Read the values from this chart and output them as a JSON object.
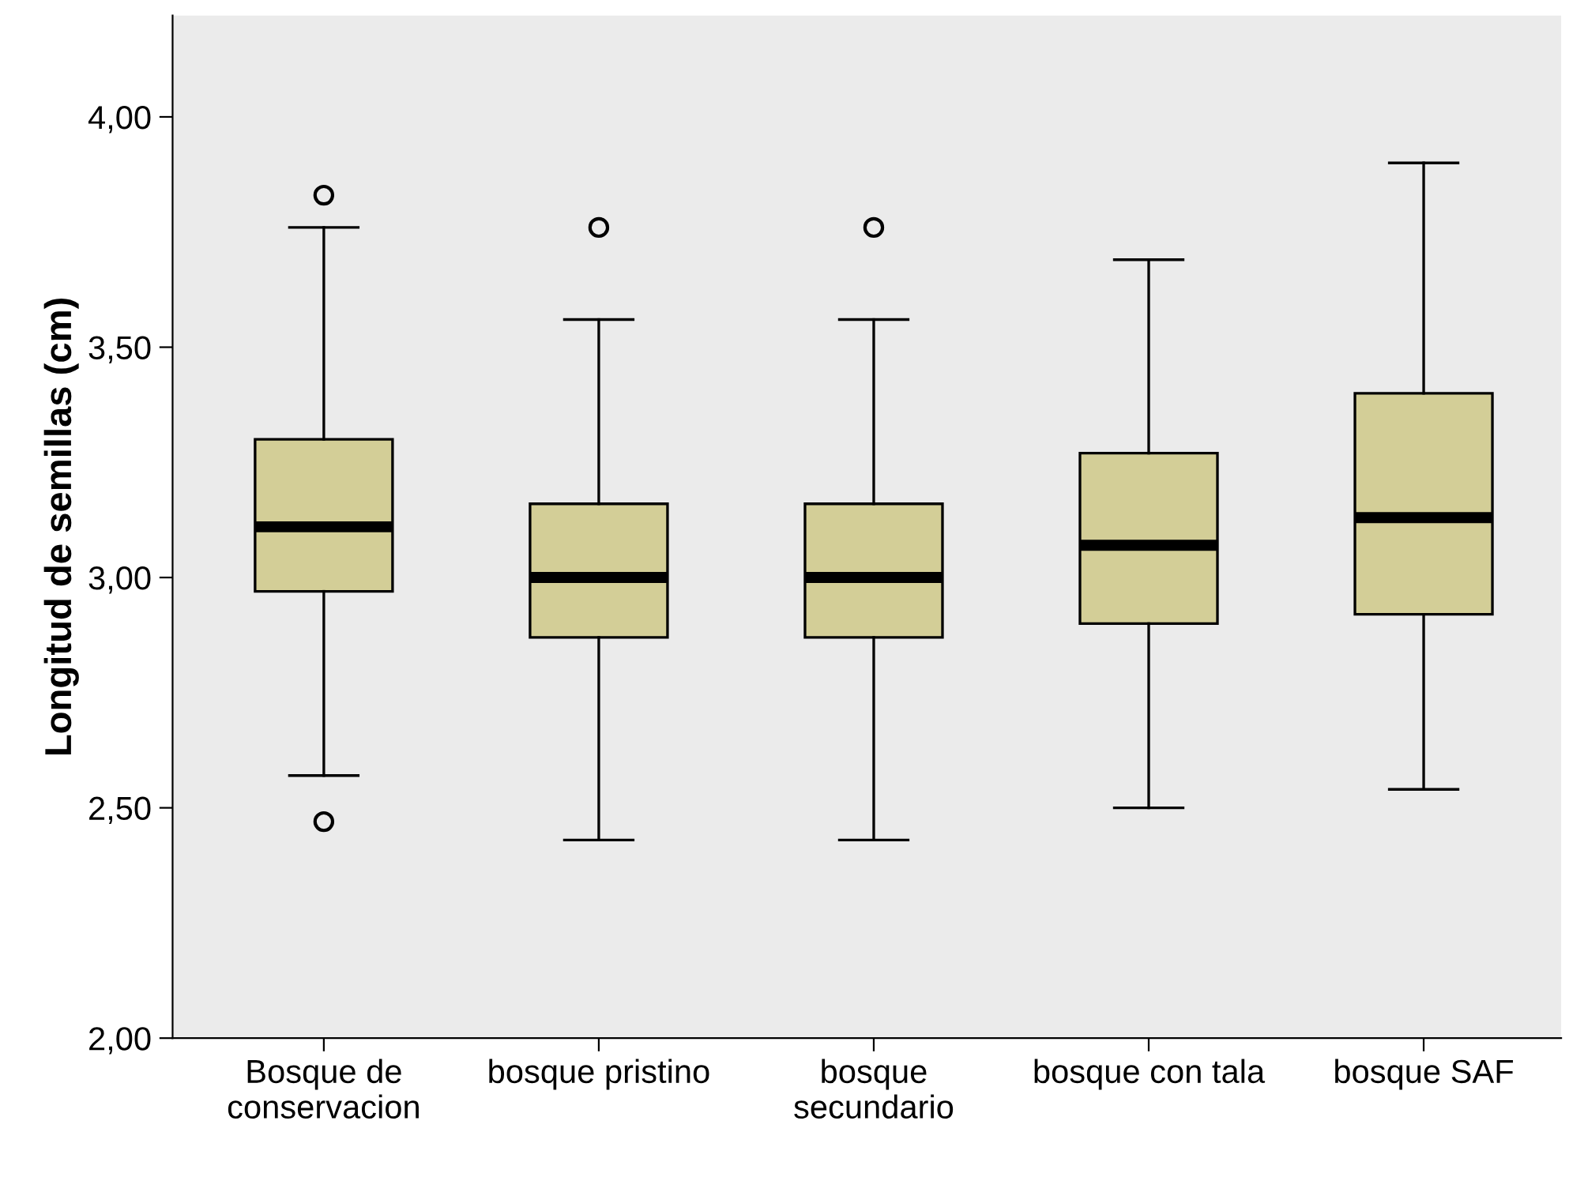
{
  "chart_data": {
    "type": "box",
    "ylabel": "Longitud de semillas (cm)",
    "categories": [
      "Bosque de\nconservacion",
      "bosque pristino",
      "bosque\nsecundario",
      "bosque con tala",
      "bosque SAF"
    ],
    "color": "#d3ce97",
    "boxes": [
      {
        "low": 2.57,
        "q1": 2.97,
        "median": 3.11,
        "q3": 3.3,
        "high": 3.76,
        "outliers": [
          3.83,
          2.47
        ]
      },
      {
        "low": 2.43,
        "q1": 2.87,
        "median": 3.0,
        "q3": 3.16,
        "high": 3.56,
        "outliers": [
          3.76
        ]
      },
      {
        "low": 2.43,
        "q1": 2.87,
        "median": 3.0,
        "q3": 3.16,
        "high": 3.56,
        "outliers": [
          3.76
        ]
      },
      {
        "low": 2.5,
        "q1": 2.9,
        "median": 3.07,
        "q3": 3.27,
        "high": 3.69
      },
      {
        "low": 2.54,
        "q1": 2.92,
        "median": 3.13,
        "q3": 3.4,
        "high": 3.9
      }
    ],
    "ylim": [
      2.0,
      4.22
    ],
    "yticks": [
      {
        "value": 2.0,
        "label": "2,00"
      },
      {
        "value": 2.5,
        "label": "2,50"
      },
      {
        "value": 3.0,
        "label": "3,00"
      },
      {
        "value": 3.5,
        "label": "3,50"
      },
      {
        "value": 4.0,
        "label": "4,00"
      }
    ],
    "grid": false
  }
}
